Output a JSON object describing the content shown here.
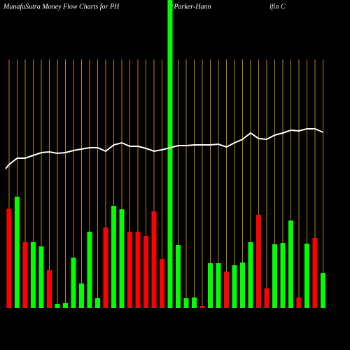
{
  "chart_data": {
    "type": "bar",
    "title": "MunafaSutra  Money Flow  Charts for PH",
    "subtitle": "(Parker-Hann",
    "subtitle2": "ifin  C",
    "background": "#000000",
    "gridline_color": "#b8860b",
    "ylim": [
      0,
      440
    ],
    "bars": {
      "values": [
        142,
        159,
        94,
        94,
        88,
        54,
        6,
        7,
        72,
        35,
        109,
        14,
        115,
        146,
        141,
        109,
        109,
        103,
        138,
        70,
        440,
        90,
        14,
        15,
        3,
        64,
        64,
        52,
        61,
        65,
        94,
        133,
        28,
        91,
        93,
        125,
        15,
        92,
        100,
        50
      ],
      "colors": [
        "#ff0000",
        "#00ff00",
        "#ff0000",
        "#00ff00",
        "#00ff00",
        "#ff0000",
        "#00ff00",
        "#00ff00",
        "#00ff00",
        "#00ff00",
        "#00ff00",
        "#00ff00",
        "#ff0000",
        "#00ff00",
        "#00ff00",
        "#ff0000",
        "#ff0000",
        "#ff0000",
        "#ff0000",
        "#ff0000",
        "#00ff00",
        "#00ff00",
        "#00ff00",
        "#00ff00",
        "#ff0000",
        "#00ff00",
        "#00ff00",
        "#ff0000",
        "#00ff00",
        "#00ff00",
        "#00ff00",
        "#ff0000",
        "#ff0000",
        "#00ff00",
        "#00ff00",
        "#00ff00",
        "#ff0000",
        "#00ff00",
        "#ff0000",
        "#00ff00"
      ]
    },
    "line": {
      "color": "#ffffff",
      "values": [
        205,
        214,
        214,
        218,
        222,
        223,
        221,
        222,
        225,
        227,
        229,
        229,
        224,
        233,
        236,
        231,
        231,
        228,
        224,
        226,
        229,
        232,
        232,
        233,
        233,
        233,
        234,
        230,
        236,
        241,
        250,
        242,
        241,
        247,
        250,
        254,
        253,
        256,
        256,
        251
      ]
    }
  }
}
